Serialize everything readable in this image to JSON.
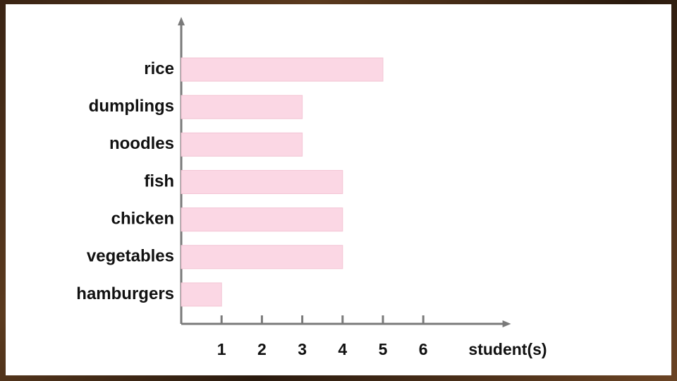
{
  "chart_data": {
    "type": "bar",
    "categories": [
      "rice",
      "dumplings",
      "noodles",
      "fish",
      "chicken",
      "vegetables",
      "hamburgers"
    ],
    "values": [
      5,
      3,
      3,
      4,
      4,
      4,
      1
    ],
    "color": "#fbd7e4",
    "xlim": [
      0,
      8
    ],
    "xticks": [
      1,
      2,
      3,
      4,
      5,
      6
    ],
    "xlabel": "student(s)"
  }
}
